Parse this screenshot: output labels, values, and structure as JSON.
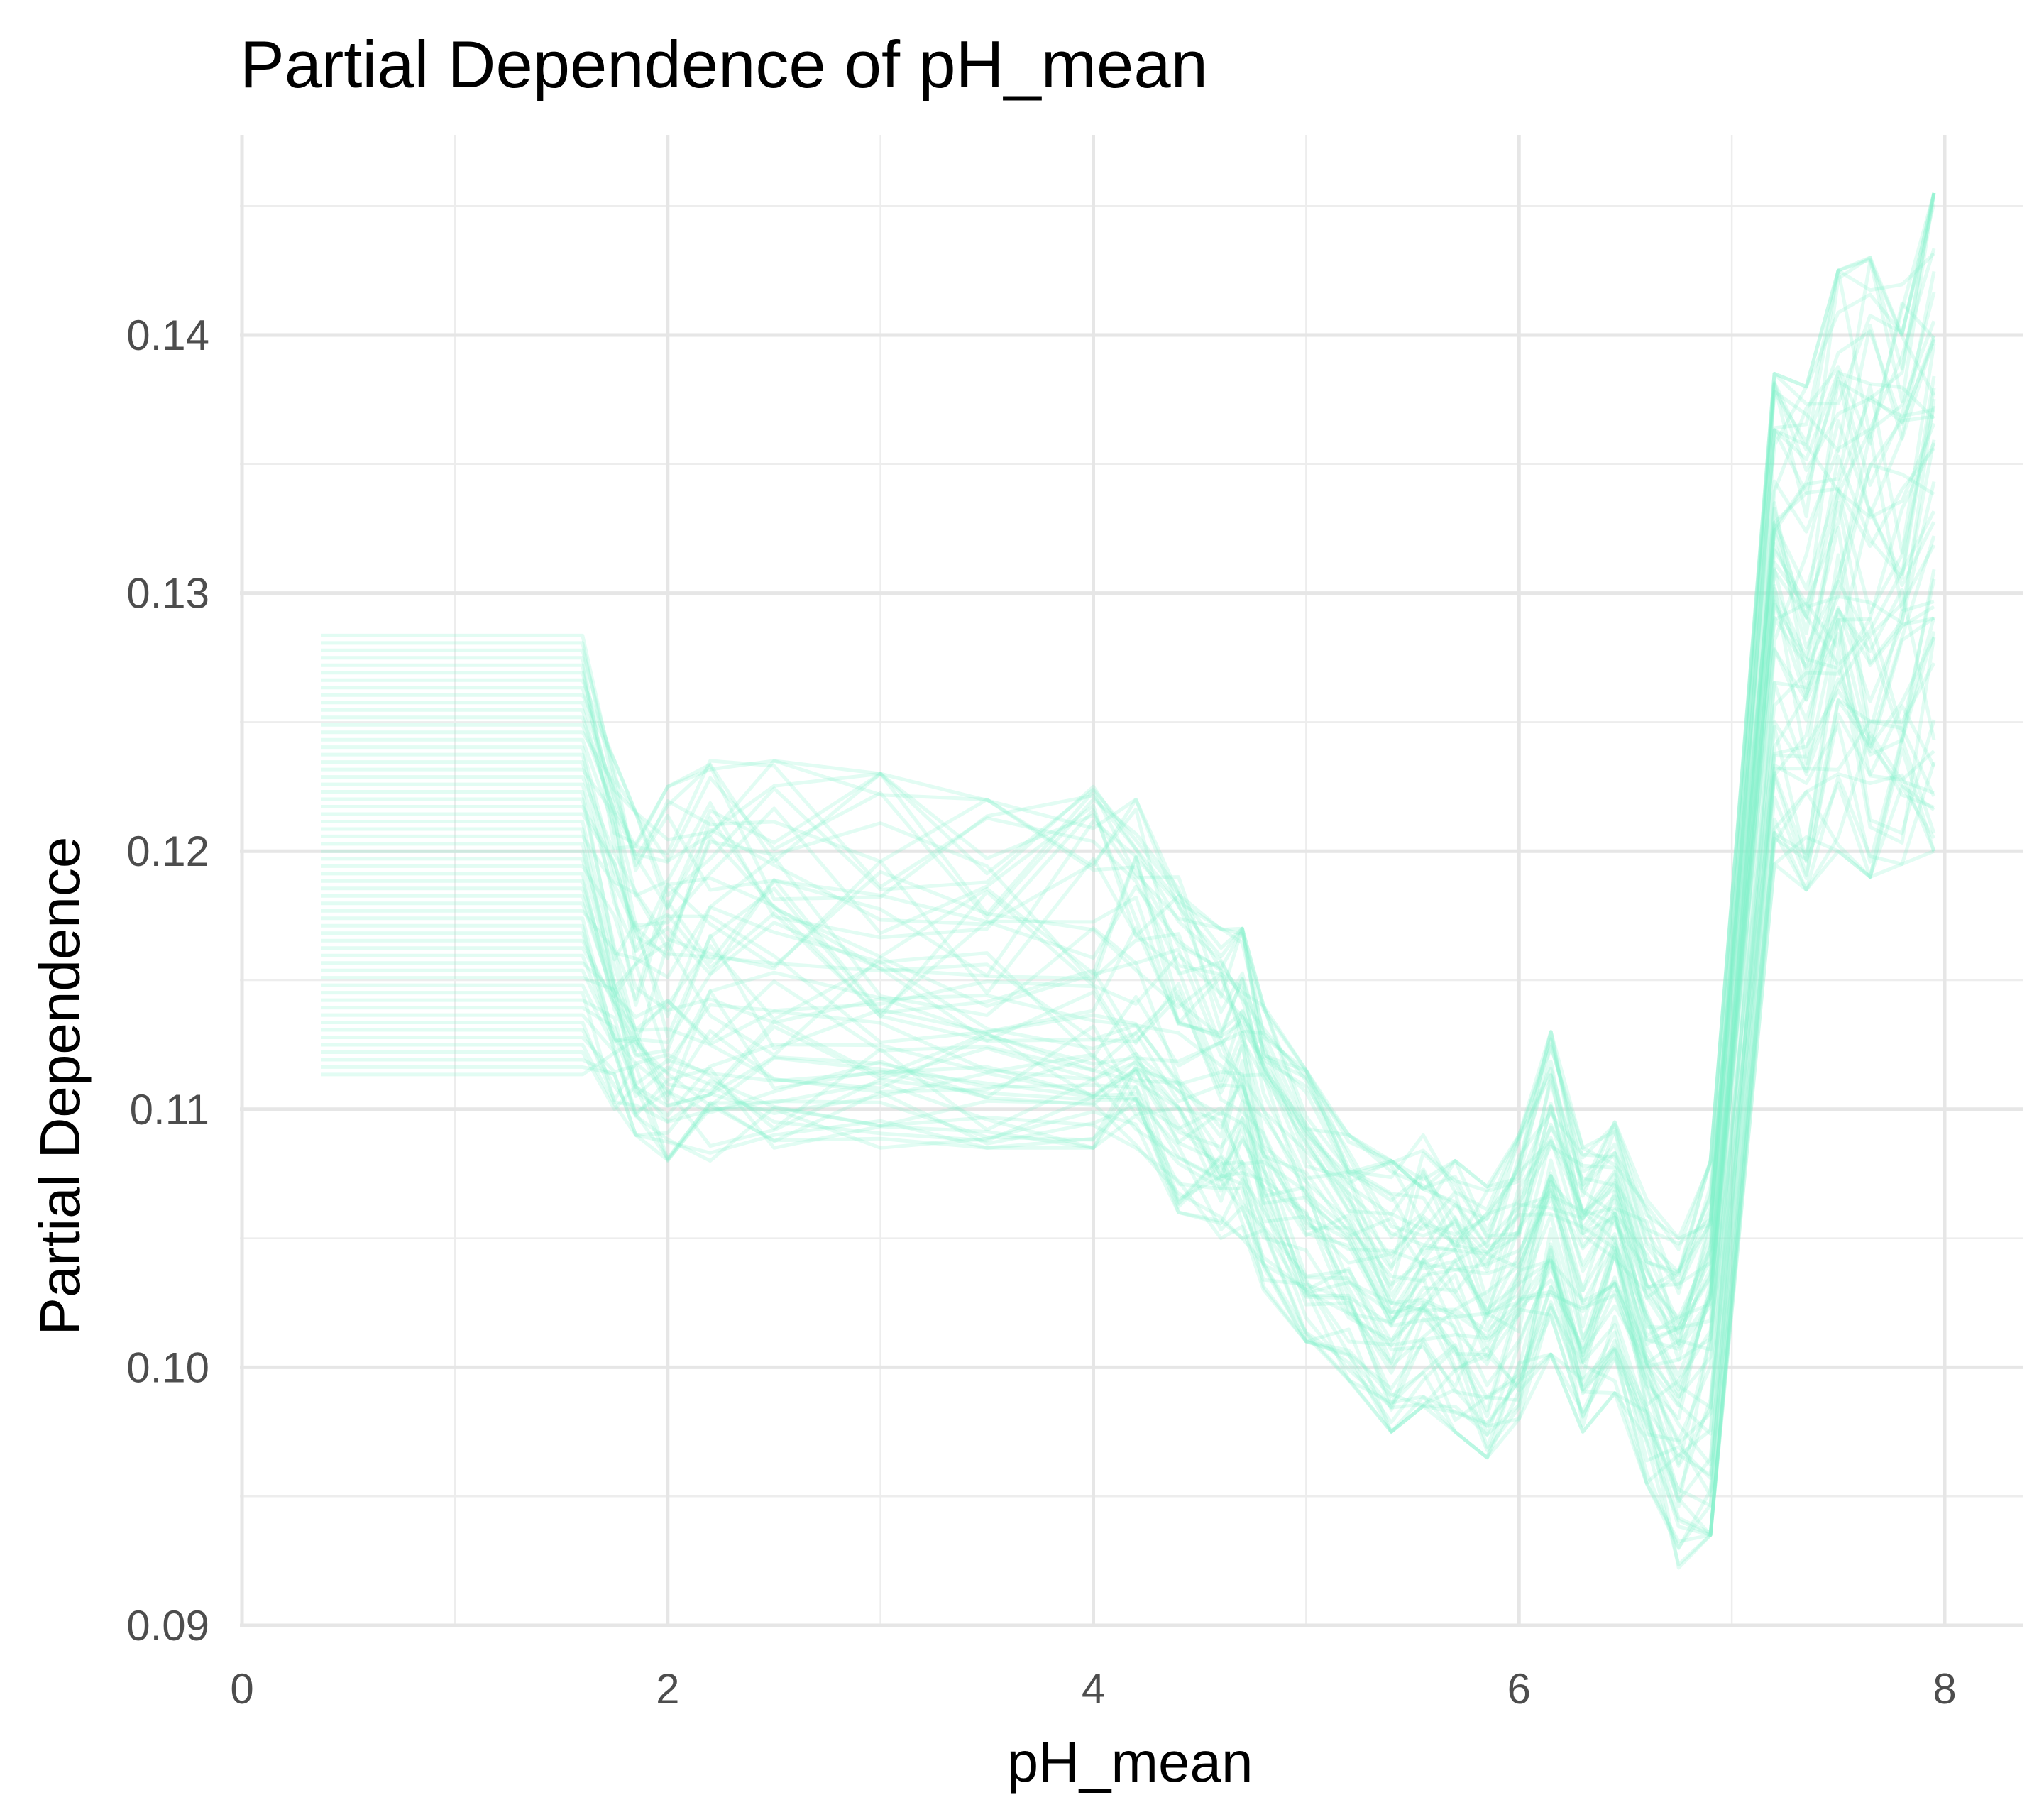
{
  "chart_data": {
    "type": "line",
    "title": "Partial Dependence of pH_mean",
    "xlabel": "pH_mean",
    "ylabel": "Partial Dependence",
    "xlim": [
      0,
      8.3
    ],
    "ylim": [
      0.09,
      0.1458
    ],
    "x_ticks": [
      0,
      2,
      4,
      6,
      8
    ],
    "x_tick_labels": [
      "0",
      "2",
      "4",
      "6",
      "8"
    ],
    "y_ticks": [
      0.09,
      0.1,
      0.11,
      0.12,
      0.13,
      0.14
    ],
    "y_tick_labels": [
      "0.09",
      "0.10",
      "0.11",
      "0.12",
      "0.13",
      "0.14"
    ],
    "grid": true,
    "legend": "none",
    "line_color": "#7df2c9",
    "x": [
      0.37,
      1.0,
      1.6,
      1.75,
      1.85,
      2.0,
      2.2,
      2.5,
      3.0,
      3.5,
      4.0,
      4.2,
      4.4,
      4.6,
      4.7,
      4.8,
      5.0,
      5.2,
      5.4,
      5.55,
      5.7,
      5.85,
      6.0,
      6.15,
      6.3,
      6.45,
      6.6,
      6.75,
      6.9,
      7.2,
      7.35,
      7.5,
      7.65,
      7.8,
      7.95
    ],
    "series_summary": {
      "count": 60,
      "mean": [
        0.1185,
        0.1185,
        0.1185,
        0.116,
        0.1142,
        0.114,
        0.1145,
        0.114,
        0.1138,
        0.1133,
        0.1133,
        0.1133,
        0.1115,
        0.111,
        0.1112,
        0.1085,
        0.1065,
        0.1048,
        0.1025,
        0.1035,
        0.103,
        0.1022,
        0.104,
        0.1068,
        0.1035,
        0.105,
        0.101,
        0.0995,
        0.102,
        0.13,
        0.127,
        0.132,
        0.1295,
        0.131,
        0.134
      ],
      "upper": [
        0.1285,
        0.1285,
        0.1285,
        0.1235,
        0.1215,
        0.1225,
        0.1235,
        0.1235,
        0.123,
        0.122,
        0.1225,
        0.122,
        0.119,
        0.117,
        0.117,
        0.114,
        0.1115,
        0.109,
        0.108,
        0.109,
        0.108,
        0.107,
        0.109,
        0.113,
        0.1085,
        0.1095,
        0.1065,
        0.105,
        0.108,
        0.1385,
        0.138,
        0.1425,
        0.143,
        0.142,
        0.1455
      ],
      "lower": [
        0.1112,
        0.1112,
        0.1112,
        0.11,
        0.109,
        0.108,
        0.108,
        0.1085,
        0.1085,
        0.1085,
        0.1085,
        0.1085,
        0.106,
        0.105,
        0.105,
        0.103,
        0.101,
        0.0995,
        0.0975,
        0.0985,
        0.0975,
        0.0965,
        0.098,
        0.1005,
        0.0975,
        0.099,
        0.0955,
        0.092,
        0.0935,
        0.1195,
        0.1185,
        0.12,
        0.119,
        0.1195,
        0.12
      ]
    }
  }
}
